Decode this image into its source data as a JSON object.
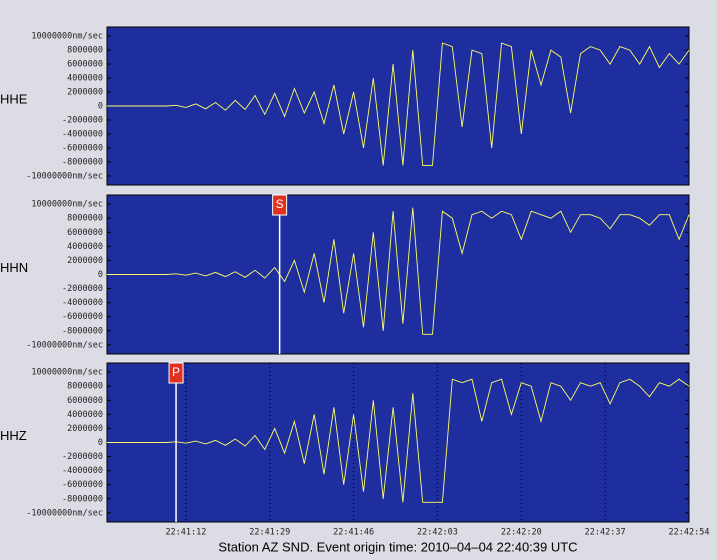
{
  "chart_data": {
    "type": "line",
    "x": [
      "22:40:56",
      "22:40:58",
      "22:41:00",
      "22:41:02",
      "22:41:04",
      "22:41:06",
      "22:41:08",
      "22:41:10",
      "22:41:12",
      "22:41:14",
      "22:41:16",
      "22:41:18",
      "22:41:20",
      "22:41:22",
      "22:41:24",
      "22:41:26",
      "22:41:28",
      "22:41:30",
      "22:41:32",
      "22:41:34",
      "22:41:36",
      "22:41:38",
      "22:41:40",
      "22:41:42",
      "22:41:44",
      "22:41:46",
      "22:41:48",
      "22:41:50",
      "22:41:52",
      "22:41:54",
      "22:41:56",
      "22:41:58",
      "22:42:00",
      "22:42:02",
      "22:42:04",
      "22:42:06",
      "22:42:08",
      "22:42:10",
      "22:42:12",
      "22:42:14",
      "22:42:16",
      "22:42:18",
      "22:42:20",
      "22:42:22",
      "22:42:24",
      "22:42:26",
      "22:42:28",
      "22:42:30",
      "22:42:32",
      "22:42:34",
      "22:42:36",
      "22:42:38",
      "22:42:40",
      "22:42:42",
      "22:42:44",
      "22:42:46",
      "22:42:48",
      "22:42:50",
      "22:42:52",
      "22:42:54"
    ],
    "series": [
      {
        "name": "HHE",
        "color": "#ffff66",
        "values": [
          0,
          0,
          0,
          0,
          0,
          0,
          0,
          100000,
          -200000,
          300000,
          -400000,
          500000,
          -600000,
          800000,
          -500000,
          1500000,
          -1200000,
          1800000,
          -1500000,
          2500000,
          -1000000,
          2000000,
          -2500000,
          3000000,
          -4000000,
          2000000,
          -6000000,
          4000000,
          -8500000,
          6000000,
          -8500000,
          8000000,
          -8500000,
          -8500000,
          9000000,
          8500000,
          -3000000,
          8000000,
          7500000,
          -6000000,
          9000000,
          8500000,
          -4000000,
          8000000,
          3000000,
          8000000,
          7000000,
          -1000000,
          7500000,
          8500000,
          8000000,
          6000000,
          8500000,
          8000000,
          6000000,
          8500000,
          5500000,
          7500000,
          6000000,
          8000000
        ]
      },
      {
        "name": "HHN",
        "color": "#ffff66",
        "phase": {
          "label": "S",
          "x": "22:41:31"
        },
        "values": [
          0,
          0,
          0,
          0,
          0,
          0,
          0,
          100000,
          -100000,
          200000,
          -200000,
          300000,
          -300000,
          400000,
          -400000,
          600000,
          -500000,
          1000000,
          -1000000,
          2000000,
          -2500000,
          3000000,
          -4000000,
          5000000,
          -5500000,
          3000000,
          -7500000,
          6000000,
          -8000000,
          9000000,
          -7000000,
          9500000,
          -8500000,
          -8500000,
          9000000,
          8000000,
          3000000,
          8500000,
          9000000,
          8000000,
          9000000,
          8500000,
          5000000,
          9000000,
          8500000,
          8000000,
          9000000,
          6000000,
          8500000,
          8500000,
          8000000,
          6500000,
          8500000,
          8500000,
          8000000,
          7000000,
          8500000,
          8500000,
          5000000,
          8500000
        ]
      },
      {
        "name": "HHZ",
        "color": "#ffff66",
        "phase": {
          "label": "P",
          "x": "22:41:10"
        },
        "values": [
          0,
          0,
          0,
          0,
          0,
          0,
          0,
          100000,
          -100000,
          200000,
          -200000,
          300000,
          -400000,
          500000,
          -500000,
          1000000,
          -1000000,
          2000000,
          -1500000,
          3000000,
          -3000000,
          4000000,
          -4500000,
          5000000,
          -6000000,
          4000000,
          -7000000,
          6000000,
          -8000000,
          5000000,
          -8500000,
          7000000,
          -8500000,
          -8500000,
          -8500000,
          9000000,
          8500000,
          9000000,
          3000000,
          8500000,
          9000000,
          4000000,
          8500000,
          8000000,
          3000000,
          8500000,
          8000000,
          6000000,
          8500000,
          8000000,
          8500000,
          5500000,
          8500000,
          9000000,
          8000000,
          6500000,
          8500000,
          8000000,
          9000000,
          8000000
        ]
      }
    ],
    "xlim": [
      "22:40:56",
      "22:42:54"
    ],
    "xticks": [
      "22:41:12",
      "22:41:29",
      "22:41:46",
      "22:42:03",
      "22:42:20",
      "22:42:37",
      "22:42:54"
    ],
    "ylim": [
      -11300000,
      11300000
    ],
    "yticks": [
      {
        "value": -10000000,
        "label": "-10000000nm/sec"
      },
      -8000000,
      -6000000,
      -4000000,
      -2000000,
      0,
      2000000,
      4000000,
      6000000,
      8000000,
      {
        "value": 10000000,
        "label": "10000000nm/sec"
      }
    ],
    "caption": "Station AZ SND.  Event origin time: 2010–04–04 22:40:39 UTC"
  }
}
